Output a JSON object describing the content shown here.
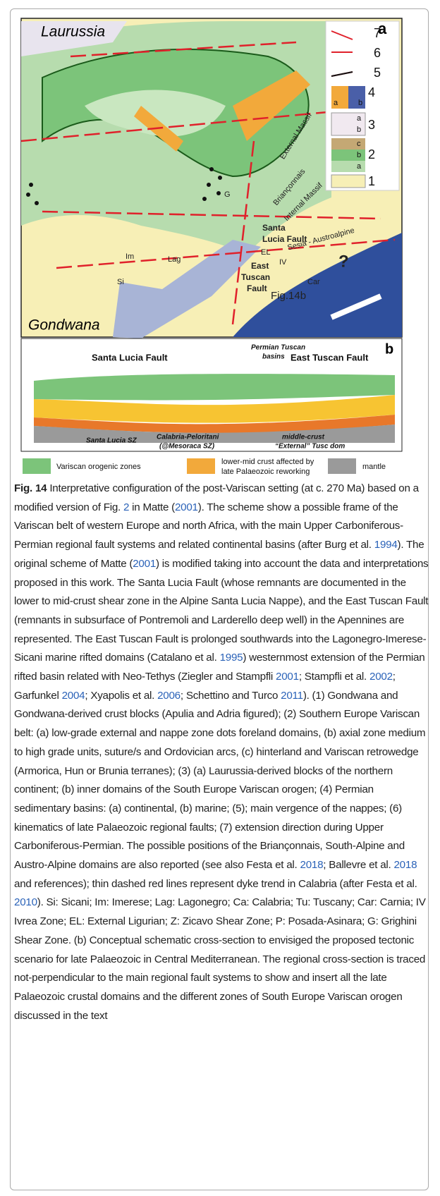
{
  "map": {
    "panel_label": "a",
    "regions": [
      "Laurussia",
      "Gondwana"
    ],
    "places": [
      "External Massif",
      "Briançonnais",
      "Internal Massif",
      "Santa",
      "Lucia Fault",
      "Sesia - Austroalpine",
      "EL",
      "IV",
      "Car",
      "East",
      "Tuscan",
      "Fault",
      "Fig.14b",
      "Im",
      "Lag",
      "Si",
      "?",
      "G"
    ],
    "legend": [
      {
        "number": "7"
      },
      {
        "number": "6"
      },
      {
        "number": "5"
      },
      {
        "number": "4",
        "parts": [
          "a",
          "b"
        ]
      },
      {
        "number": "3",
        "parts": [
          "a",
          "b"
        ]
      },
      {
        "number": "2",
        "parts": [
          "c",
          "b",
          "a"
        ]
      },
      {
        "number": "1"
      }
    ]
  },
  "section": {
    "panel_label": "b",
    "labels": [
      "Santa Lucia Fault",
      "Permian Tuscan",
      "basins",
      "East Tuscan Fault",
      "Santa Lucia SZ",
      "Calabria-Peloritani",
      "(@Mesoraca SZ)",
      "middle-crust",
      "“External” Tusc dom"
    ],
    "legend": [
      "Variscan orogenic zones",
      "lower-mid crust affected by",
      "late Palaeozoic reworking",
      "mantle"
    ]
  },
  "caption": {
    "label": "Fig. 14",
    "body": [
      {
        "text": " Interpretative configuration of the post-Variscan setting (at c. 270 Ma) based on a modified version of Fig. "
      },
      {
        "link": "2"
      },
      {
        "text": " in Matte ("
      },
      {
        "link": "2001"
      },
      {
        "text": "). The scheme show a possible frame of the Variscan belt of western Europe and north Africa, with the main Upper Carboniferous-Permian regional fault systems and related continental basins (after Burg et al. "
      },
      {
        "link": "1994"
      },
      {
        "text": "). The original scheme of Matte ("
      },
      {
        "link": "2001"
      },
      {
        "text": ") is modified taking into account the data and interpretations proposed in this work. The Santa Lucia Fault (whose remnants are documented in the lower to mid-crust shear zone in the Alpine Santa Lucia Nappe), and the East Tuscan Fault (remnants in subsurface of Pontremoli and Larderello deep well) in the Apennines are represented. The East Tuscan Fault is prolonged southwards into the Lagonegro-Imerese-Sicani marine rifted domains (Catalano et al. "
      },
      {
        "link": "1995"
      },
      {
        "text": ") westernmost extension of the Permian rifted basin related with Neo-Tethys (Ziegler and Stampfli "
      },
      {
        "link": "2001"
      },
      {
        "text": "; Stampfli et al. "
      },
      {
        "link": "2002"
      },
      {
        "text": "; Garfunkel "
      },
      {
        "link": "2004"
      },
      {
        "text": "; Xyapolis et al. "
      },
      {
        "link": "2006"
      },
      {
        "text": "; Schettino and Turco "
      },
      {
        "link": "2011"
      },
      {
        "text": "). (1) Gondwana and Gondwana-derived crust blocks (Apulia and Adria figured); (2) Southern Europe Variscan belt: (a) low-grade external and nappe zone dots foreland domains, (b) axial zone medium to high grade units, suture/s and Ordovician arcs, (c) hinterland and Variscan retrowedge (Armorica, Hun or Brunia terranes); (3) (a) Laurussia-derived blocks of the northern continent; (b) inner domains of the South Europe Variscan orogen; (4) Permian sedimentary basins: (a) continental, (b) marine; (5); main vergence of the nappes; (6) kinematics of late Palaeozoic regional faults; (7) extension direction during Upper Carboniferous-Permian. The possible positions of the Briançonnais, South-Alpine and Austro-Alpine domains are also reported (see also Festa et al. "
      },
      {
        "link": "2018"
      },
      {
        "text": "; Ballevre et al. "
      },
      {
        "link": "2018"
      },
      {
        "text": " and references); thin dashed red lines represent dyke trend in Calabria (after Festa et al. "
      },
      {
        "link": "2010"
      },
      {
        "text": "). Si: Sicani; Im: Imerese; Lag: Lagonegro; Ca: Calabria; Tu: Tuscany; Car: Carnia; IV Ivrea Zone; EL: External Ligurian; Z: Zicavo Shear Zone; P: Posada-Asinara; G: Grighini Shear Zone. (b) Conceptual schematic cross-section to envisiged the proposed tectonic scenario for late Palaeozoic in Central Mediterranean. The regional cross-section is traced not-perpendicular to the main regional fault systems to show and insert all the late Palaeozoic crustal domains and the different zones of South Europe Variscan orogen discussed in the text"
      }
    ]
  }
}
